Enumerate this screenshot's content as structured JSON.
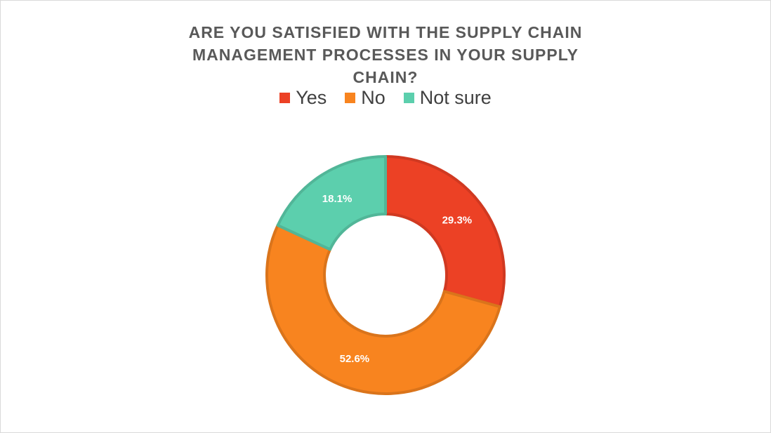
{
  "chart_data": {
    "type": "donut",
    "title": "ARE YOU SATISFIED WITH THE SUPPLY CHAIN MANAGEMENT PROCESSES IN YOUR SUPPLY CHAIN?",
    "categories": [
      "Yes",
      "No",
      "Not sure"
    ],
    "values": [
      29.3,
      52.6,
      18.1
    ],
    "value_labels": [
      "29.3%",
      "52.6%",
      "18.1%"
    ],
    "colors": [
      "#ec4125",
      "#f8841f",
      "#5ccfad"
    ],
    "legend": "top"
  }
}
